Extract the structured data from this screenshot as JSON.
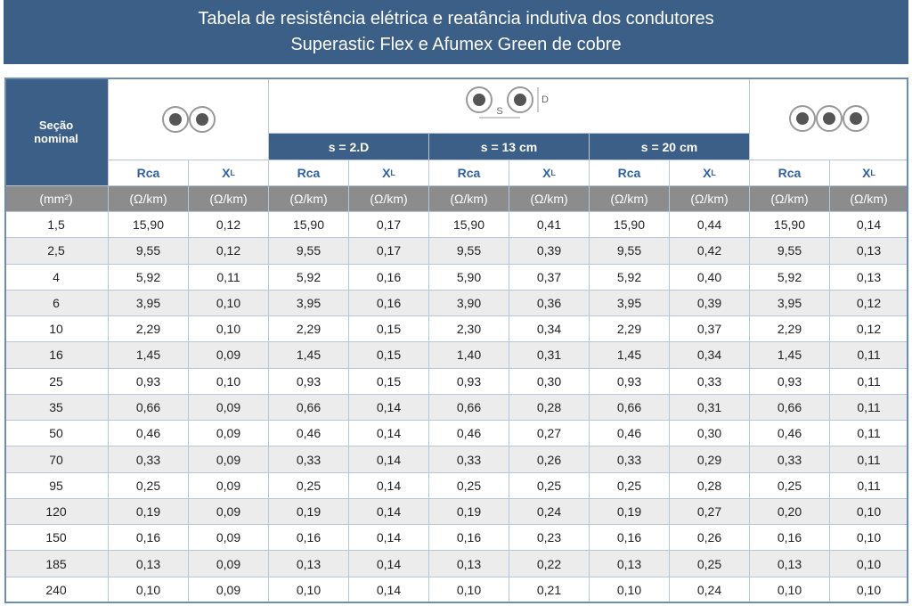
{
  "header": {
    "title_lines": [
      "Tabela de resistência elétrica e reatância indutiva dos condutores",
      "Superastic Flex e Afumex Green  de cobre"
    ]
  },
  "table": {
    "section_header": [
      "Seção",
      "nominal"
    ],
    "spacing_labels": [
      "s = 2.D",
      "s = 13 cm",
      "s = 20 cm"
    ],
    "icon_labels": {
      "s": "S",
      "d": "D"
    },
    "column_headers": [
      {
        "main": "Rca"
      },
      {
        "main": "X",
        "sub": "L"
      },
      {
        "main": "Rca"
      },
      {
        "main": "X",
        "sub": "L"
      },
      {
        "main": "Rca"
      },
      {
        "main": "X",
        "sub": "L"
      },
      {
        "main": "Rca"
      },
      {
        "main": "X",
        "sub": "L"
      },
      {
        "main": "Rca"
      },
      {
        "main": "X",
        "sub": "L"
      }
    ],
    "units": [
      "(mm²)",
      "(Ω/km)",
      "(Ω/km)",
      "(Ω/km)",
      "(Ω/km)",
      "(Ω/km)",
      "(Ω/km)",
      "(Ω/km)",
      "(Ω/km)",
      "(Ω/km)",
      "(Ω/km)"
    ],
    "rows": [
      [
        "1,5",
        "15,90",
        "0,12",
        "15,90",
        "0,17",
        "15,90",
        "0,41",
        "15,90",
        "0,44",
        "15,90",
        "0,14"
      ],
      [
        "2,5",
        "9,55",
        "0,12",
        "9,55",
        "0,17",
        "9,55",
        "0,39",
        "9,55",
        "0,42",
        "9,55",
        "0,13"
      ],
      [
        "4",
        "5,92",
        "0,11",
        "5,92",
        "0,16",
        "5,90",
        "0,37",
        "5,92",
        "0,40",
        "5,92",
        "0,13"
      ],
      [
        "6",
        "3,95",
        "0,10",
        "3,95",
        "0,16",
        "3,90",
        "0,36",
        "3,95",
        "0,39",
        "3,95",
        "0,12"
      ],
      [
        "10",
        "2,29",
        "0,10",
        "2,29",
        "0,15",
        "2,30",
        "0,34",
        "2,29",
        "0,37",
        "2,29",
        "0,12"
      ],
      [
        "16",
        "1,45",
        "0,09",
        "1,45",
        "0,15",
        "1,40",
        "0,31",
        "1,45",
        "0,34",
        "1,45",
        "0,11"
      ],
      [
        "25",
        "0,93",
        "0,10",
        "0,93",
        "0,15",
        "0,93",
        "0,30",
        "0,93",
        "0,33",
        "0,93",
        "0,11"
      ],
      [
        "35",
        "0,66",
        "0,09",
        "0,66",
        "0,14",
        "0,66",
        "0,28",
        "0,66",
        "0,31",
        "0,66",
        "0,11"
      ],
      [
        "50",
        "0,46",
        "0,09",
        "0,46",
        "0,14",
        "0,46",
        "0,27",
        "0,46",
        "0,30",
        "0,46",
        "0,11"
      ],
      [
        "70",
        "0,33",
        "0,09",
        "0,33",
        "0,14",
        "0,33",
        "0,26",
        "0,33",
        "0,29",
        "0,33",
        "0,11"
      ],
      [
        "95",
        "0,25",
        "0,09",
        "0,25",
        "0,14",
        "0,25",
        "0,25",
        "0,25",
        "0,28",
        "0,25",
        "0,11"
      ],
      [
        "120",
        "0,19",
        "0,09",
        "0,19",
        "0,14",
        "0,19",
        "0,24",
        "0,19",
        "0,27",
        "0,20",
        "0,10"
      ],
      [
        "150",
        "0,16",
        "0,09",
        "0,16",
        "0,14",
        "0,16",
        "0,23",
        "0,16",
        "0,26",
        "0,16",
        "0,10"
      ],
      [
        "185",
        "0,13",
        "0,09",
        "0,13",
        "0,14",
        "0,13",
        "0,22",
        "0,13",
        "0,25",
        "0,13",
        "0,10"
      ],
      [
        "240",
        "0,10",
        "0,09",
        "0,10",
        "0,14",
        "0,10",
        "0,21",
        "0,10",
        "0,24",
        "0,10",
        "0,10"
      ]
    ]
  }
}
